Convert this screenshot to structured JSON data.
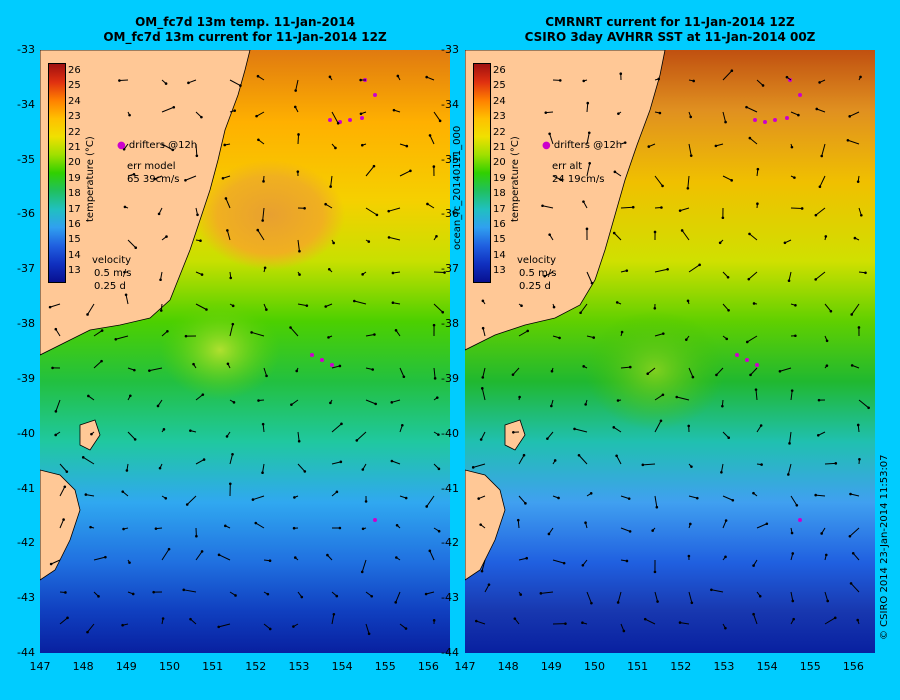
{
  "titles": {
    "left_line1": "OM_fc7d 13m temp. 11-Jan-2014",
    "left_line2": "OM_fc7d 13m current for 11-Jan-2014 12Z",
    "right_line1": "CMRNRT current for 11-Jan-2014 12Z",
    "right_line2": "CSIRO 3day AVHRR SST at 11-Jan-2014 00Z"
  },
  "axes": {
    "y_ticks": [
      "-33",
      "-34",
      "-35",
      "-36",
      "-37",
      "-38",
      "-39",
      "-40",
      "-41",
      "-42",
      "-43",
      "-44"
    ],
    "x_ticks": [
      "147",
      "148",
      "149",
      "150",
      "151",
      "152",
      "153",
      "154",
      "155",
      "156"
    ],
    "lat_range": [
      -44,
      -33
    ],
    "lon_range": [
      147,
      156.5
    ]
  },
  "colorbar": {
    "label": "temperature (°C)",
    "ticks": [
      "26",
      "25",
      "24",
      "23",
      "22",
      "21",
      "20",
      "19",
      "18",
      "17",
      "16",
      "15",
      "14",
      "13"
    ],
    "range": [
      13,
      26
    ]
  },
  "legend": {
    "drifters": "drifters @12h",
    "err_left_label": "err model",
    "err_left_value": "65 39cm/s",
    "err_right_label": "err alt",
    "err_right_value": "24 19cm/s",
    "velocity_label": "velocity",
    "velocity_speed": "0.5 m/s",
    "velocity_time": "0.25 d"
  },
  "side_labels": {
    "run_id": "ocean_fc_20140111_000",
    "credit": "© CSIRO 2014   23-Jan-2014 11:53:07"
  },
  "colors": {
    "background": "#00ccff",
    "land": "#ffc896",
    "drifters": "#cc00cc",
    "vectors": "#000000"
  },
  "icons": {
    "drifter_marker": "magenta-dot-icon",
    "velocity_arrow": "arrow-icon"
  }
}
